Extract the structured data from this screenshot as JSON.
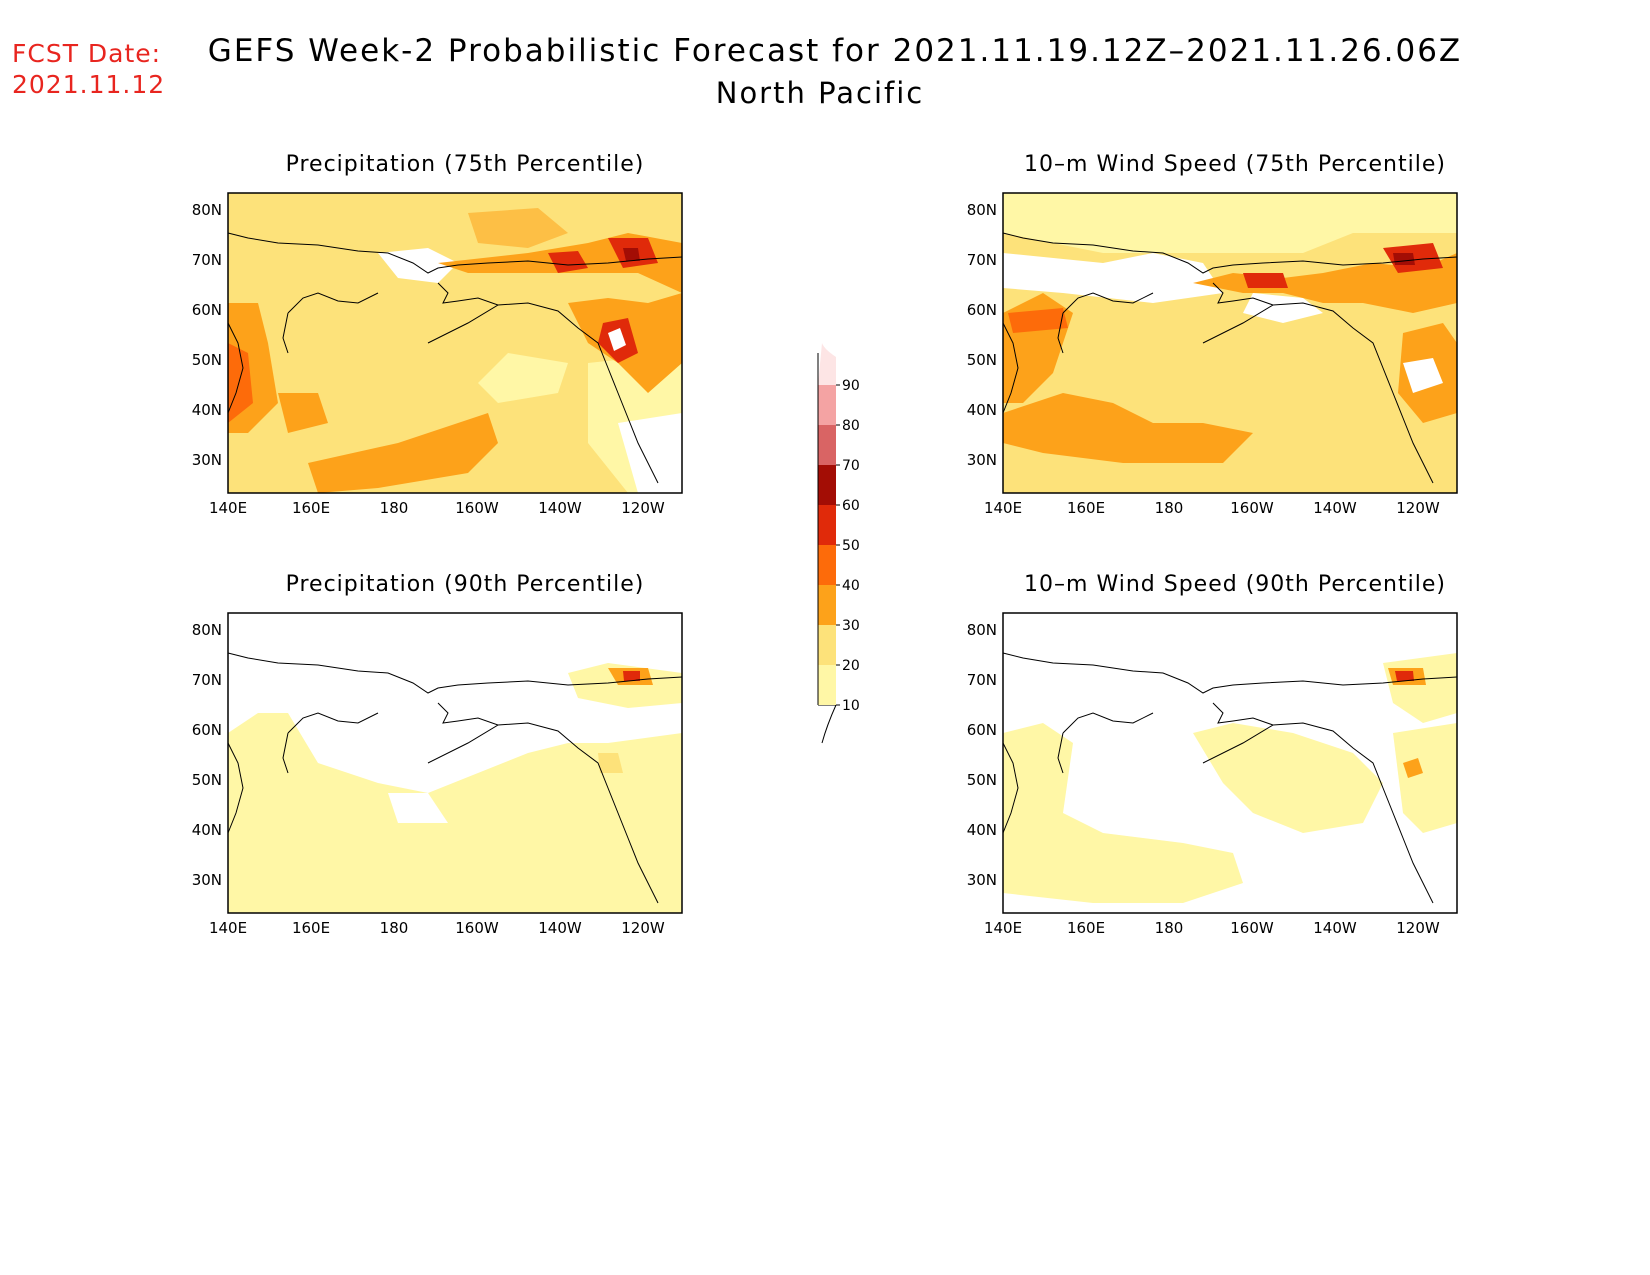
{
  "header": {
    "fcst_label": "FCST Date:",
    "fcst_date": "2021.11.12",
    "title": "GEFS Week-2 Probabilistic Forecast for 2021.11.19.12Z–2021.11.26.06Z",
    "subtitle": "North Pacific"
  },
  "panels": [
    {
      "id": "p75",
      "title": "Precipitation (75th Percentile)"
    },
    {
      "id": "w75",
      "title": "10–m Wind Speed (75th Percentile)"
    },
    {
      "id": "p90",
      "title": "Precipitation (90th Percentile)"
    },
    {
      "id": "w90",
      "title": "10–m Wind Speed (90th Percentile)"
    }
  ],
  "axes": {
    "lat_labels": [
      "80N",
      "70N",
      "60N",
      "50N",
      "40N",
      "30N"
    ],
    "lon_labels": [
      "140E",
      "160E",
      "180",
      "160W",
      "140W",
      "120W"
    ]
  },
  "colorbar": {
    "levels": [
      "10",
      "20",
      "30",
      "40",
      "50",
      "60",
      "70",
      "80",
      "90"
    ],
    "colors": [
      "#fff7a6",
      "#fde27a",
      "#fda21a",
      "#fd6b0a",
      "#e02a0a",
      "#a30d05",
      "#d96464",
      "#f4a3a3",
      "#fde5e5"
    ]
  }
}
